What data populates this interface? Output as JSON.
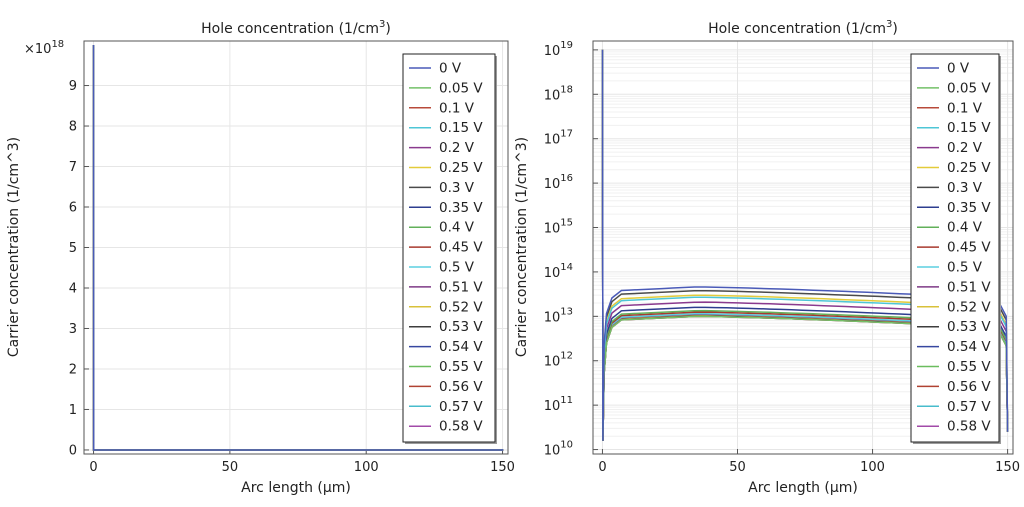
{
  "chart_data": [
    {
      "type": "line",
      "title": "Hole concentration (1/cm",
      "title_sup": "3",
      "title_end": ")",
      "xlabel": "Arc length (µm)",
      "ylabel": "Carrier concentration (1/cm^3)",
      "yscale": "linear",
      "exponent_prefix": "×10",
      "exponent_sup": "18",
      "x_ticks": [
        "0",
        "50",
        "100",
        "150"
      ],
      "x_tick_values": [
        0,
        50,
        100,
        150
      ],
      "y_ticks": [
        "0",
        "1",
        "2",
        "3",
        "4",
        "5",
        "6",
        "7",
        "8",
        "9"
      ],
      "y_tick_values": [
        0,
        1,
        2,
        3,
        4,
        5,
        6,
        7,
        8,
        9
      ],
      "xlim": [
        -3.5,
        152
      ],
      "ylim": [
        -0.1,
        10.1
      ],
      "grid": true,
      "legend": "right"
    },
    {
      "type": "line",
      "title": "Hole concentration (1/cm",
      "title_sup": "3",
      "title_end": ")",
      "xlabel": "Arc length (µm)",
      "ylabel": "Carrier concentration (1/cm^3)",
      "yscale": "log",
      "x_ticks": [
        "0",
        "50",
        "100",
        "150"
      ],
      "x_tick_values": [
        0,
        50,
        100,
        150
      ],
      "y_tick_base": "10",
      "y_tick_exps": [
        "10",
        "11",
        "12",
        "13",
        "14",
        "15",
        "16",
        "17",
        "18",
        "19"
      ],
      "xlim": [
        -3.5,
        152
      ],
      "ylim": [
        9.9,
        19.2
      ],
      "grid": true,
      "legend": "right"
    }
  ],
  "series": [
    {
      "name": "0 V",
      "color": "#4a5ab8",
      "peak": 46000000000000.0
    },
    {
      "name": "0.05 V",
      "color": "#73c068",
      "peak": 10000000000000.0
    },
    {
      "name": "0.1 V",
      "color": "#b84a3a",
      "peak": 10000000000000.0
    },
    {
      "name": "0.15 V",
      "color": "#4ec6d6",
      "peak": 27000000000000.0
    },
    {
      "name": "0.2 V",
      "color": "#8a3a8e",
      "peak": 21000000000000.0
    },
    {
      "name": "0.25 V",
      "color": "#e3cb3a",
      "peak": 30000000000000.0
    },
    {
      "name": "0.3 V",
      "color": "#4a4a4a",
      "peak": 38000000000000.0
    },
    {
      "name": "0.35 V",
      "color": "#2d3d8f",
      "peak": 16000000000000.0
    },
    {
      "name": "0.4 V",
      "color": "#62b05a",
      "peak": 13500000000000.0
    },
    {
      "name": "0.45 V",
      "color": "#a8392e",
      "peak": 12500000000000.0
    },
    {
      "name": "0.5 V",
      "color": "#5ccfe0",
      "peak": 11500000000000.0
    },
    {
      "name": "0.51 V",
      "color": "#7e3a86",
      "peak": 11200000000000.0
    },
    {
      "name": "0.52 V",
      "color": "#d8c13a",
      "peak": 11000000000000.0
    },
    {
      "name": "0.53 V",
      "color": "#3e3e3e",
      "peak": 10800000000000.0
    },
    {
      "name": "0.54 V",
      "color": "#3747a0",
      "peak": 10600000000000.0
    },
    {
      "name": "0.55 V",
      "color": "#6abd5e",
      "peak": 10400000000000.0
    },
    {
      "name": "0.56 V",
      "color": "#b04232",
      "peak": 10200000000000.0
    },
    {
      "name": "0.57 V",
      "color": "#48bccc",
      "peak": 10100000000000.0
    },
    {
      "name": "0.58 V",
      "color": "#a24aa8",
      "peak": 10000000000000.0
    }
  ],
  "series_shape": {
    "x_peak": 35,
    "end_ratio": 0.55,
    "boundary_value": 1e+19
  }
}
